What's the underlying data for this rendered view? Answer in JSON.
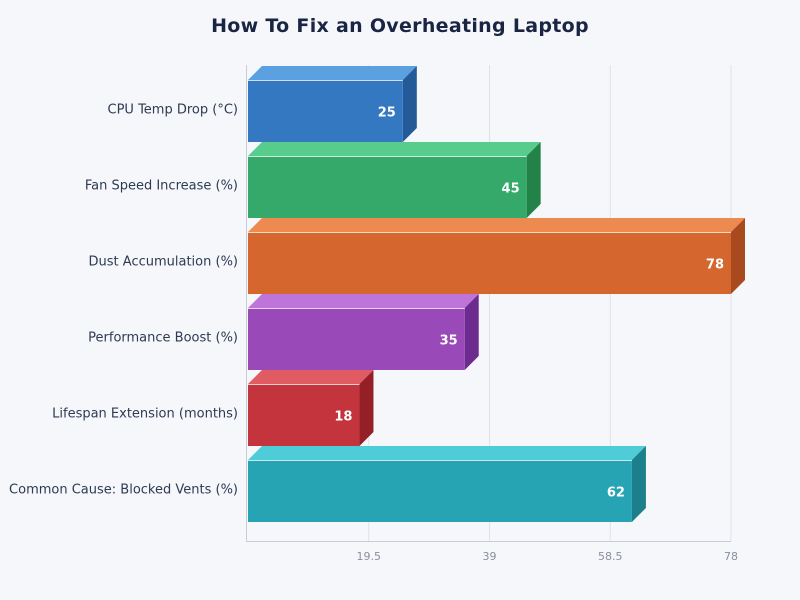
{
  "header": {
    "title": "How To Fix an Overheating Laptop"
  },
  "chart_data": {
    "type": "bar",
    "orientation": "horizontal",
    "style": "3d",
    "title": "How To Fix an Overheating Laptop",
    "xlabel": "",
    "ylabel": "",
    "categories": [
      "CPU Temp Drop (°C)",
      "Fan Speed Increase (%)",
      "Dust Accumulation (%)",
      "Performance Boost (%)",
      "Lifespan Extension (months)",
      "Common Cause: Blocked Vents (%)"
    ],
    "values": [
      25,
      45,
      78,
      35,
      18,
      62
    ],
    "value_labels": [
      "25",
      "45",
      "78",
      "35",
      "18",
      "62"
    ],
    "colors": [
      "#3478c1",
      "#34a96a",
      "#d4662e",
      "#9a4ab8",
      "#c4343c",
      "#27a4b4"
    ],
    "top_colors": [
      "#5ba0e0",
      "#58cc8c",
      "#ec8a50",
      "#be74d8",
      "#e05c62",
      "#4ecdd8"
    ],
    "side_colors": [
      "#235a97",
      "#228247",
      "#a84a1e",
      "#6e2b8f",
      "#941f26",
      "#1c7f8c"
    ],
    "xlim": [
      0,
      78
    ],
    "xticks": [
      19.5,
      39,
      58.5,
      78
    ],
    "xtick_labels": [
      "19.5",
      "39",
      "58.5",
      "78"
    ],
    "grid": true,
    "legend": null
  }
}
